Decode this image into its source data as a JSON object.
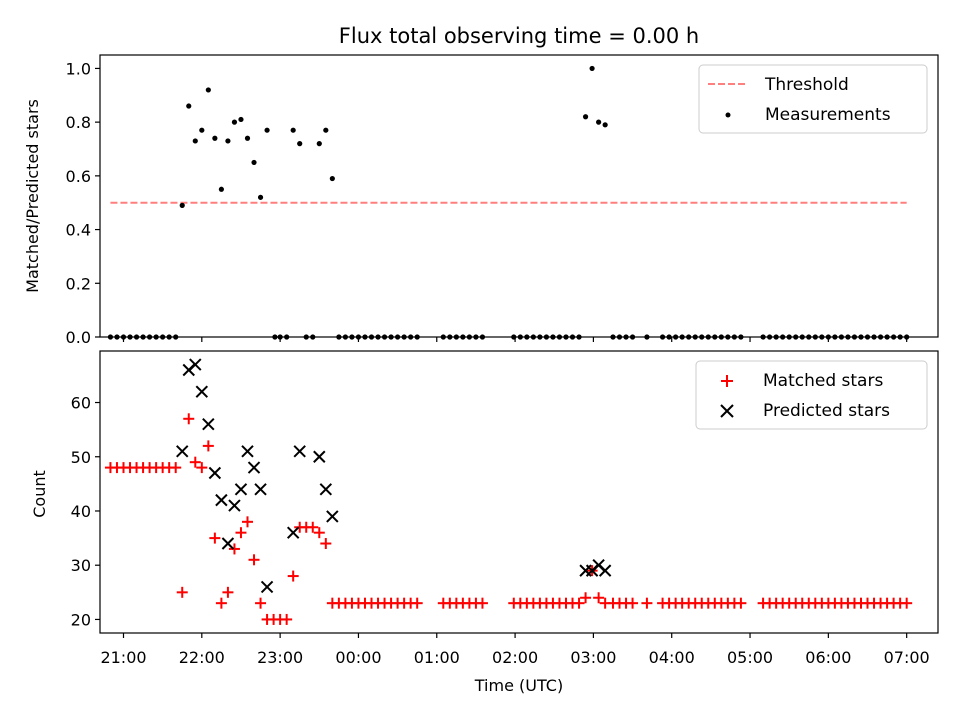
{
  "figure": {
    "title": "Flux total observing time = 0.00 h",
    "xlabel": "Time (UTC)"
  },
  "colors": {
    "threshold": "#ff7f7f",
    "measurements": "#000000",
    "matched": "#ff0000",
    "predicted": "#000000"
  },
  "chart_data": [
    {
      "type": "scatter",
      "ylabel": "Matched/Predicted stars",
      "xlim": [
        "20:42",
        "07:24"
      ],
      "ylim": [
        0,
        1.05
      ],
      "yticks": [
        0.0,
        0.2,
        0.4,
        0.6,
        0.8,
        1.0
      ],
      "yticklabels": [
        "0.0",
        "0.2",
        "0.4",
        "0.6",
        "0.8",
        "1.0"
      ],
      "grid": false,
      "legend": "top-right",
      "threshold": {
        "name": "Threshold",
        "y": 0.5,
        "x_start": "20:50",
        "x_end": "07:00"
      },
      "series": [
        {
          "name": "Measurements",
          "x": [
            "20:50",
            "20:55",
            "21:00",
            "21:05",
            "21:10",
            "21:15",
            "21:20",
            "21:25",
            "21:30",
            "21:35",
            "21:40",
            "21:45",
            "21:50",
            "21:55",
            "22:00",
            "22:05",
            "22:10",
            "22:15",
            "22:20",
            "22:25",
            "22:30",
            "22:35",
            "22:40",
            "22:45",
            "22:50",
            "22:56",
            "23:00",
            "23:05",
            "23:10",
            "23:15",
            "23:20",
            "23:25",
            "23:30",
            "23:35",
            "23:40",
            "23:45",
            "23:50",
            "23:55",
            "00:00",
            "00:05",
            "00:10",
            "00:15",
            "00:20",
            "00:25",
            "00:30",
            "00:35",
            "00:40",
            "00:45",
            "01:05",
            "01:10",
            "01:15",
            "01:20",
            "01:25",
            "01:30",
            "01:35",
            "01:59",
            "02:04",
            "02:09",
            "02:14",
            "02:19",
            "02:24",
            "02:29",
            "02:34",
            "02:39",
            "02:44",
            "02:49",
            "02:54",
            "02:59",
            "03:04",
            "03:09",
            "03:15",
            "03:20",
            "03:25",
            "03:30",
            "03:41",
            "03:53",
            "03:58",
            "04:03",
            "04:08",
            "04:13",
            "04:18",
            "04:23",
            "04:28",
            "04:33",
            "04:38",
            "04:43",
            "04:48",
            "04:53",
            "05:10",
            "05:15",
            "05:20",
            "05:25",
            "05:30",
            "05:35",
            "05:40",
            "05:45",
            "05:50",
            "05:55",
            "06:00",
            "06:05",
            "06:10",
            "06:15",
            "06:20",
            "06:25",
            "06:30",
            "06:35",
            "06:40",
            "06:45",
            "06:50",
            "06:55",
            "07:00"
          ],
          "y": [
            0,
            0,
            0,
            0,
            0,
            0,
            0,
            0,
            0,
            0,
            0,
            0.49,
            0.86,
            0.73,
            0.77,
            0.92,
            0.74,
            0.55,
            0.73,
            0.8,
            0.81,
            0.74,
            0.65,
            0.52,
            0.77,
            0,
            0,
            0,
            0.77,
            0.72,
            0,
            0,
            0.72,
            0.77,
            0.59,
            0,
            0,
            0,
            0,
            0,
            0,
            0,
            0,
            0,
            0,
            0,
            0,
            0,
            0,
            0,
            0,
            0,
            0,
            0,
            0,
            0,
            0,
            0,
            0,
            0,
            0,
            0,
            0,
            0,
            0,
            0,
            0.82,
            1.0,
            0.8,
            0.79,
            0,
            0,
            0,
            0,
            0,
            0,
            0,
            0,
            0,
            0,
            0,
            0,
            0,
            0,
            0,
            0,
            0,
            0,
            0,
            0,
            0,
            0,
            0,
            0,
            0,
            0,
            0,
            0,
            0,
            0,
            0,
            0,
            0,
            0,
            0,
            0,
            0,
            0,
            0,
            0,
            0
          ]
        }
      ]
    },
    {
      "type": "scatter",
      "ylabel": "Count",
      "xlim": [
        "20:42",
        "07:24"
      ],
      "ylim": [
        17.5,
        69.5
      ],
      "yticks": [
        20,
        30,
        40,
        50,
        60
      ],
      "xticklabels": [
        "21:00",
        "22:00",
        "23:00",
        "00:00",
        "01:00",
        "02:00",
        "03:00",
        "04:00",
        "05:00",
        "06:00",
        "07:00"
      ],
      "grid": false,
      "legend": "top-right",
      "series": [
        {
          "name": "Matched stars",
          "marker": "+",
          "x": [
            "20:50",
            "20:55",
            "21:00",
            "21:05",
            "21:10",
            "21:15",
            "21:20",
            "21:25",
            "21:30",
            "21:35",
            "21:40",
            "21:45",
            "21:50",
            "21:55",
            "22:00",
            "22:05",
            "22:10",
            "22:15",
            "22:20",
            "22:25",
            "22:30",
            "22:35",
            "22:40",
            "22:45",
            "22:50",
            "22:55",
            "23:00",
            "23:05",
            "23:10",
            "23:15",
            "23:20",
            "23:25",
            "23:30",
            "23:35",
            "23:40",
            "23:45",
            "23:50",
            "23:55",
            "00:00",
            "00:05",
            "00:10",
            "00:15",
            "00:20",
            "00:25",
            "00:30",
            "00:35",
            "00:40",
            "00:45",
            "01:05",
            "01:10",
            "01:15",
            "01:20",
            "01:25",
            "01:30",
            "01:35",
            "01:59",
            "02:04",
            "02:09",
            "02:14",
            "02:19",
            "02:24",
            "02:29",
            "02:34",
            "02:39",
            "02:44",
            "02:49",
            "02:54",
            "02:59",
            "03:04",
            "03:09",
            "03:15",
            "03:20",
            "03:25",
            "03:30",
            "03:41",
            "03:53",
            "03:58",
            "04:03",
            "04:08",
            "04:13",
            "04:18",
            "04:23",
            "04:28",
            "04:33",
            "04:38",
            "04:43",
            "04:48",
            "04:53",
            "05:10",
            "05:15",
            "05:20",
            "05:25",
            "05:30",
            "05:35",
            "05:40",
            "05:45",
            "05:50",
            "05:55",
            "06:00",
            "06:05",
            "06:10",
            "06:15",
            "06:20",
            "06:25",
            "06:30",
            "06:35",
            "06:40",
            "06:45",
            "06:50",
            "06:55",
            "07:00"
          ],
          "y": [
            48,
            48,
            48,
            48,
            48,
            48,
            48,
            48,
            48,
            48,
            48,
            25,
            57,
            49,
            48,
            52,
            35,
            23,
            25,
            33,
            36,
            38,
            31,
            23,
            20,
            20,
            20,
            20,
            28,
            37,
            37,
            37,
            36,
            34,
            23,
            23,
            23,
            23,
            23,
            23,
            23,
            23,
            23,
            23,
            23,
            23,
            23,
            23,
            23,
            23,
            23,
            23,
            23,
            23,
            23,
            23,
            23,
            23,
            23,
            23,
            23,
            23,
            23,
            23,
            23,
            23,
            24,
            29,
            24,
            23,
            23,
            23,
            23,
            23,
            23,
            23,
            23,
            23,
            23,
            23,
            23,
            23,
            23,
            23,
            23,
            23,
            23,
            23,
            23,
            23,
            23,
            23,
            23,
            23,
            23,
            23,
            23,
            23,
            23,
            23,
            23,
            23,
            23,
            23,
            23,
            23,
            23,
            23,
            23,
            23,
            23
          ]
        },
        {
          "name": "Predicted stars",
          "marker": "x",
          "x": [
            "21:45",
            "21:50",
            "21:55",
            "22:00",
            "22:05",
            "22:10",
            "22:15",
            "22:20",
            "22:25",
            "22:30",
            "22:35",
            "22:40",
            "22:45",
            "22:50",
            "23:10",
            "23:15",
            "23:30",
            "23:35",
            "23:40",
            "02:54",
            "02:59",
            "03:04",
            "03:09"
          ],
          "y": [
            51,
            66,
            67,
            62,
            56,
            47,
            42,
            34,
            41,
            44,
            51,
            48,
            44,
            26,
            36,
            51,
            50,
            44,
            39,
            29,
            29,
            30,
            29
          ]
        }
      ]
    }
  ]
}
